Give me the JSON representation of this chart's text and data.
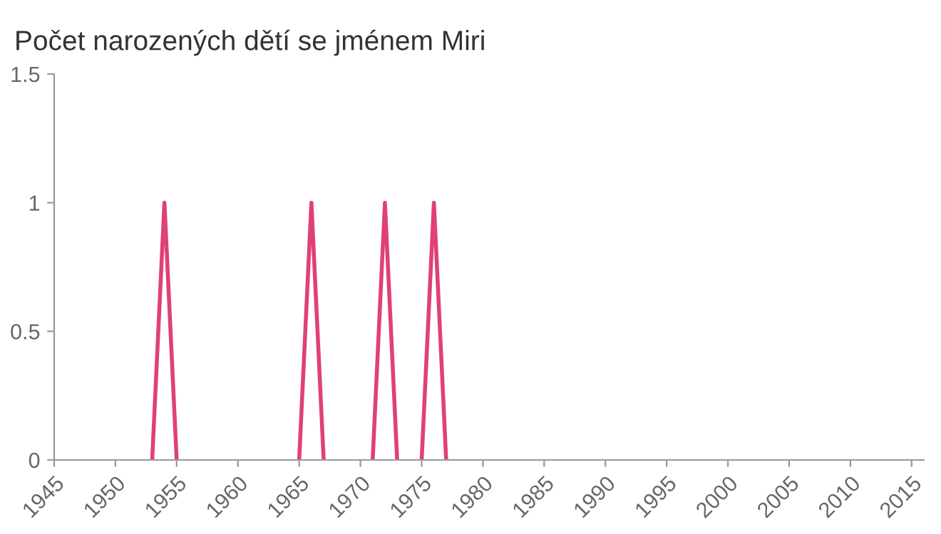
{
  "chart_data": {
    "type": "line",
    "title": "Počet narozených dětí se jménem Miri",
    "series": [
      {
        "color": "#e0407a",
        "x": [
          1953,
          1954,
          1955
        ],
        "values": [
          0,
          1,
          0
        ]
      },
      {
        "color": "#e0407a",
        "x": [
          1965,
          1966,
          1967
        ],
        "values": [
          0,
          1,
          0
        ]
      },
      {
        "color": "#e0407a",
        "x": [
          1971,
          1972,
          1973
        ],
        "values": [
          0,
          1,
          0
        ]
      },
      {
        "color": "#e0407a",
        "x": [
          1975,
          1976,
          1977
        ],
        "values": [
          0,
          1,
          0
        ]
      }
    ],
    "xlim": [
      1945,
      2016
    ],
    "xticks": [
      1945,
      1950,
      1955,
      1960,
      1965,
      1970,
      1975,
      1980,
      1985,
      1990,
      1995,
      2000,
      2005,
      2010,
      2015
    ],
    "ylim": [
      0,
      1.5
    ],
    "yticks": [
      0,
      0.5,
      1,
      1.5
    ],
    "grid": false,
    "marker": "none",
    "line_style": "solid"
  }
}
